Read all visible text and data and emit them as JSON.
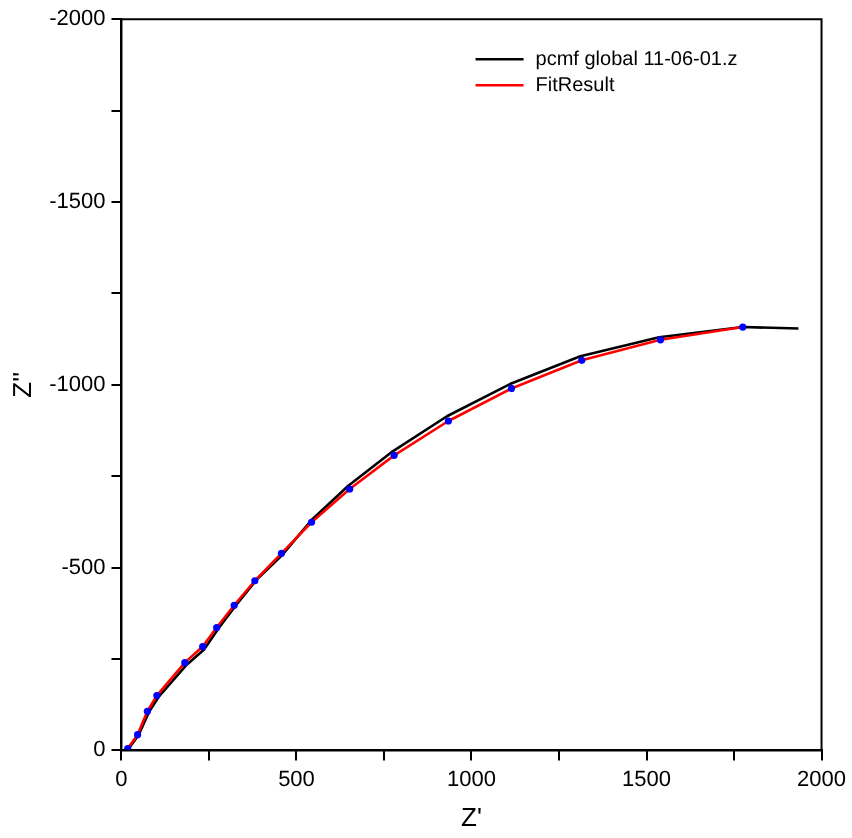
{
  "chart_data": {
    "type": "line",
    "xlabel": "Z'",
    "ylabel": "Z''",
    "xlim": [
      0,
      2000
    ],
    "ylim": [
      0,
      -2000
    ],
    "xticks": [
      0,
      {
        "value": 250,
        "label": null
      },
      500,
      {
        "value": 750,
        "label": null
      },
      1000,
      {
        "value": 1250,
        "label": null
      },
      1500,
      {
        "value": 1750,
        "label": null
      },
      2000
    ],
    "yticks": [
      0,
      {
        "value": -250,
        "label": null
      },
      -500,
      {
        "value": -750,
        "label": null
      },
      -1000,
      {
        "value": -1250,
        "label": null
      },
      -1500,
      {
        "value": -1750,
        "label": null
      },
      -2000
    ],
    "grid": false,
    "legend": "top right",
    "marker": "none",
    "line_style": "solid",
    "series": [
      {
        "name": "pcmf global 11-06-01.z",
        "color": "#000000",
        "x": [
          21,
          49,
          78,
          106,
          184,
          236,
          276,
          326,
          385,
          457,
          543,
          648,
          775,
          930,
          1110,
          1311,
          1536,
          1775,
          1934
        ],
        "values": [
          -5,
          -42,
          -104,
          -146,
          -232,
          -276,
          -332,
          -396,
          -466,
          -532,
          -630,
          -724,
          -818,
          -914,
          -1002,
          -1078,
          -1130,
          -1158,
          -1154
        ]
      },
      {
        "name": "FitResult",
        "color": "#ff0000",
        "x": [
          18,
          46,
          74,
          101,
          181,
          232,
          272,
          322,
          381,
          457,
          543,
          652,
          779,
          934,
          1114,
          1315,
          1540,
          1775
        ],
        "values": [
          -5,
          -43,
          -107,
          -150,
          -240,
          -284,
          -336,
          -397,
          -464,
          -539,
          -624,
          -715,
          -807,
          -901,
          -990,
          -1067,
          -1123,
          -1158
        ]
      },
      {
        "type": "scatter",
        "color": "#0000ff",
        "marker": "circle",
        "x": [
          18,
          46,
          74,
          101,
          181,
          232,
          272,
          322,
          381,
          457,
          543,
          652,
          779,
          934,
          1114,
          1315,
          1540,
          1775
        ],
        "values": [
          -5,
          -43,
          -107,
          -150,
          -240,
          -284,
          -336,
          -397,
          -464,
          -539,
          -624,
          -715,
          -807,
          -901,
          -990,
          -1067,
          -1123,
          -1158
        ]
      }
    ]
  }
}
